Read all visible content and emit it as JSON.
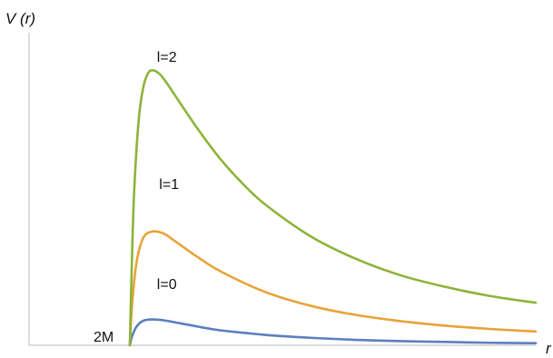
{
  "chart_data": {
    "type": "line",
    "title": "",
    "ylabel": "V (r)",
    "xlabel": "r",
    "grid": false,
    "legend": "none",
    "xlim": [
      0,
      20
    ],
    "ylim": [
      0,
      0.075
    ],
    "annotations": [
      {
        "text": "2M",
        "x": 2,
        "y": 0
      }
    ],
    "series": [
      {
        "name": "l=0",
        "color": "#5b7fbf",
        "label_at": {
          "x": 3.2,
          "y": 0.0135
        },
        "x": [
          2,
          2.1,
          2.3,
          2.6,
          3.0,
          3.5,
          4,
          5,
          6,
          8,
          10,
          12,
          14,
          16,
          18,
          20
        ],
        "y": [
          0,
          0.0022,
          0.0045,
          0.0059,
          0.0062,
          0.006,
          0.0055,
          0.0045,
          0.0036,
          0.0025,
          0.0018,
          0.0013,
          0.001,
          0.0008,
          0.0006,
          0.0005
        ]
      },
      {
        "name": "l=1",
        "color": "#e8a33a",
        "label_at": {
          "x": 3.3,
          "y": 0.0375
        },
        "x": [
          2,
          2.1,
          2.3,
          2.6,
          3.0,
          3.5,
          4,
          5,
          6,
          8,
          10,
          12,
          14,
          16,
          18,
          20
        ],
        "y": [
          0,
          0.0098,
          0.02,
          0.0258,
          0.0273,
          0.0268,
          0.025,
          0.0212,
          0.0178,
          0.0128,
          0.0095,
          0.0073,
          0.0058,
          0.0047,
          0.0039,
          0.0033
        ]
      },
      {
        "name": "l=2",
        "color": "#8db33a",
        "label_at": {
          "x": 3.2,
          "y": 0.068
        },
        "x": [
          2,
          2.1,
          2.2,
          2.4,
          2.6,
          2.8,
          3.0,
          3.3,
          3.6,
          4,
          5,
          6,
          7,
          8,
          10,
          12,
          14,
          16,
          18,
          20
        ],
        "y": [
          0,
          0.022,
          0.038,
          0.0545,
          0.062,
          0.0652,
          0.066,
          0.0652,
          0.0632,
          0.06,
          0.052,
          0.0448,
          0.0388,
          0.0338,
          0.0262,
          0.0208,
          0.0168,
          0.014,
          0.0118,
          0.0102
        ]
      }
    ]
  }
}
